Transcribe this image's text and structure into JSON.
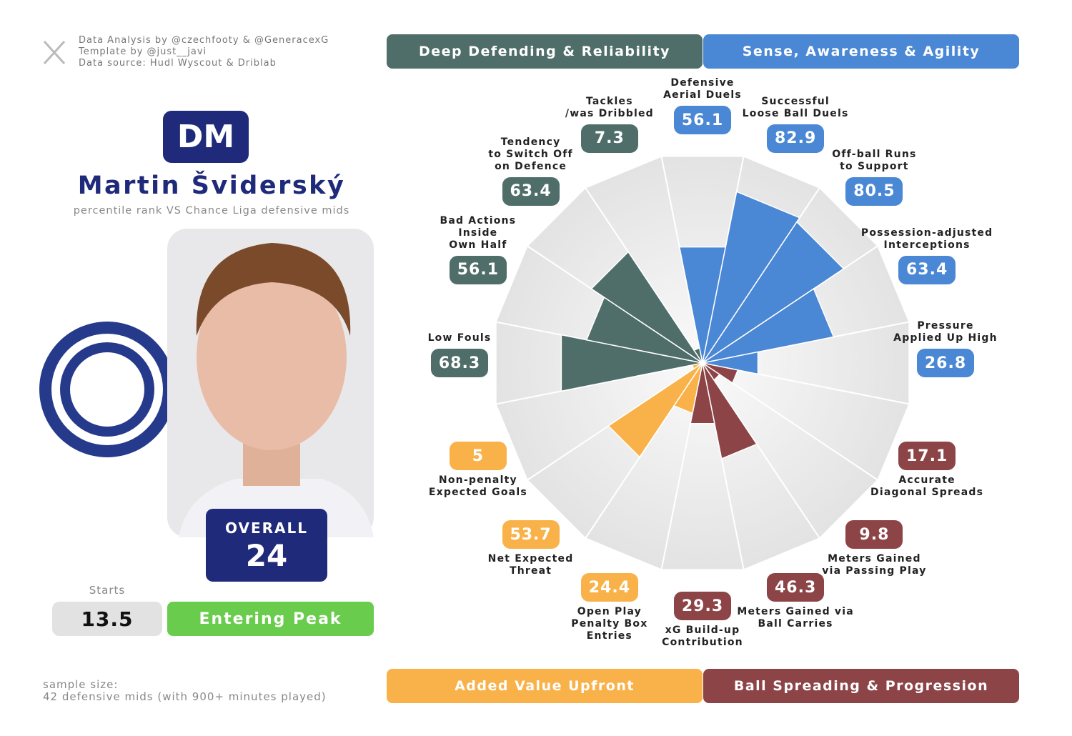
{
  "header": {
    "credits": [
      "Data Analysis by @czechfooty & @GeneracexG",
      "Template by @just__javi",
      "Data source: Hudl Wyscout & Driblab"
    ]
  },
  "player": {
    "position": "DM",
    "name": "Martin Šviderský",
    "subtitle": "percentile rank VS Chance Liga defensive mids",
    "overall_label": "OVERALL",
    "overall": 24,
    "starts_label": "Starts",
    "starts": 13.5,
    "status": "Entering Peak"
  },
  "footer": {
    "sample_size": [
      "sample size:",
      "42 defensive mids (with 900+ minutes played)"
    ]
  },
  "chart_data": {
    "type": "pizza",
    "rlim": [
      0,
      100
    ],
    "series": [
      {
        "name": "Sense, Awareness & Agility",
        "color": "#4a87d4",
        "categories": [
          "Defensive\nAerial Duels",
          "Successful\nLoose Ball Duels",
          "Off-ball Runs\nto Support",
          "Possession-adjusted\nInterceptions",
          "Pressure\nApplied Up High"
        ],
        "values": [
          56.1,
          82.9,
          80.5,
          63.4,
          26.8
        ]
      },
      {
        "name": "Ball Spreading & Progression",
        "color": "#8c4447",
        "categories": [
          "Accurate\nDiagonal Spreads",
          "Meters Gained\nvia Passing Play",
          "Meters Gained via\nBall Carries",
          "xG Build-up\nContribution"
        ],
        "values": [
          17.1,
          9.8,
          46.3,
          29.3
        ]
      },
      {
        "name": "Added Value Upfront",
        "color": "#f9b24a",
        "categories": [
          "Open Play\nPenalty Box\nEntries",
          "Net Expected\nThreat",
          "Non-penalty\nExpected Goals"
        ],
        "values": [
          24.4,
          53.7,
          5
        ]
      },
      {
        "name": "Deep Defending & Reliability",
        "color": "#4f6e69",
        "categories": [
          "Low Fouls",
          "Bad Actions\nInside\nOwn Half",
          "Tendency\nto Switch Off\non Defence",
          "Tackles\n/was Dribbled"
        ],
        "values": [
          68.3,
          56.1,
          63.4,
          7.3
        ]
      }
    ]
  }
}
